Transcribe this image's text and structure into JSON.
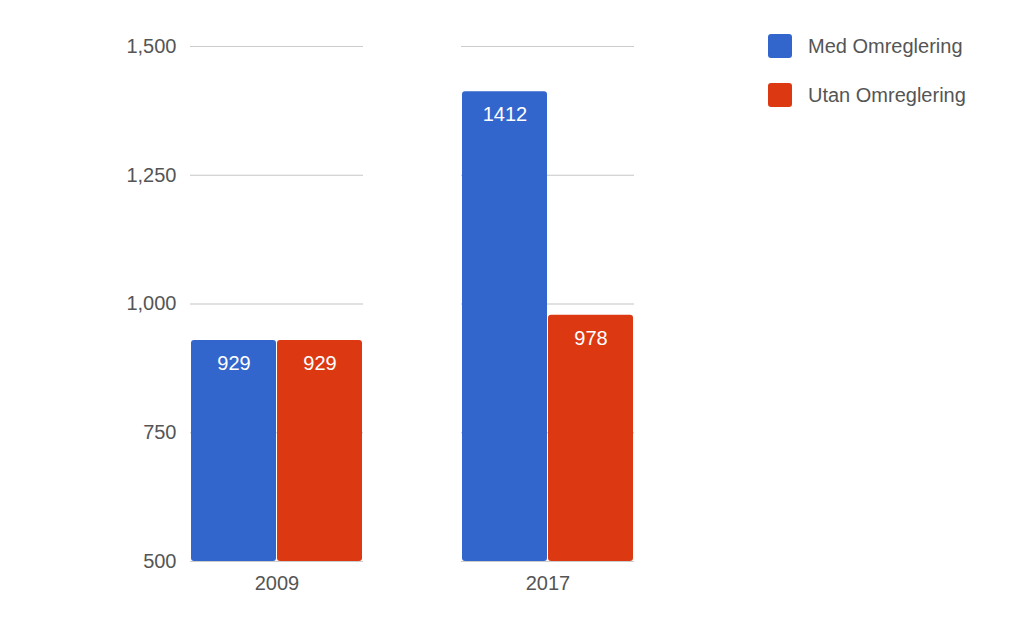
{
  "chart_data": {
    "type": "bar",
    "categories": [
      "2009",
      "2017"
    ],
    "series": [
      {
        "name": "Med Omreglering",
        "color": "#3366cc",
        "values": [
          929,
          1412
        ]
      },
      {
        "name": "Utan Omreglering",
        "color": "#dc3912",
        "values": [
          929,
          978
        ]
      }
    ],
    "ylim": [
      500,
      1500
    ],
    "yticks": [
      500,
      750,
      1000,
      1250,
      1500
    ],
    "grid": true,
    "legend": "top-right",
    "data_labels": true
  }
}
